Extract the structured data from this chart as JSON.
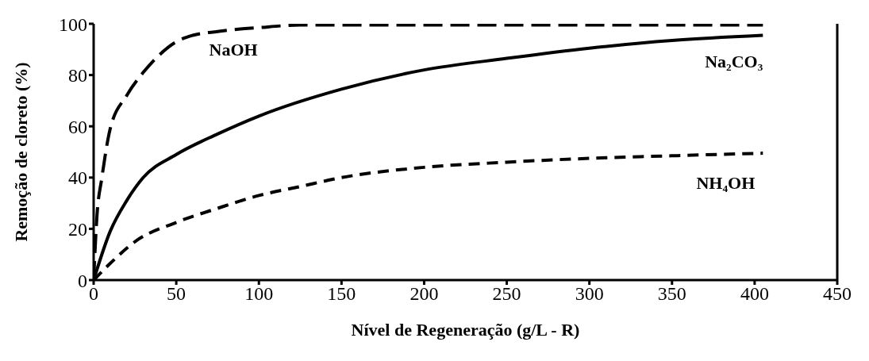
{
  "chart_data": {
    "type": "line",
    "xlabel": "Nível de Regeneração (g/L - R)",
    "ylabel": "Remoção de cloreto (%)",
    "xlim": [
      0,
      450
    ],
    "xticks": [
      0,
      50,
      100,
      150,
      200,
      250,
      300,
      350,
      400,
      450
    ],
    "ylim": [
      0,
      100
    ],
    "yticks": [
      0,
      20,
      40,
      60,
      80,
      100
    ],
    "legend": false,
    "marker": "none",
    "series": [
      {
        "name": "NaOH",
        "color": "#000000",
        "line_style": "dashed",
        "x": [
          0,
          2,
          5,
          10,
          20,
          30,
          40,
          50,
          60,
          75,
          100,
          125,
          150,
          200,
          250,
          300,
          350,
          405
        ],
        "values": [
          0,
          25,
          40,
          59,
          72,
          81,
          88,
          93,
          95.5,
          97,
          98.5,
          99.5,
          99.5,
          99.5,
          99.5,
          99.5,
          99.5,
          99.5
        ]
      },
      {
        "name": "Na₂CO₃",
        "color": "#000000",
        "line_style": "solid",
        "x": [
          0,
          10,
          20,
          30,
          50,
          75,
          100,
          150,
          200,
          250,
          300,
          350,
          405
        ],
        "values": [
          0,
          19,
          31,
          40,
          49,
          57,
          64,
          74.5,
          82,
          86.5,
          90.5,
          93.5,
          95.5
        ]
      },
      {
        "name": "NH₄OH",
        "color": "#000000",
        "line_style": "dashed",
        "x": [
          0,
          10,
          25,
          50,
          75,
          100,
          125,
          150,
          200,
          250,
          300,
          350,
          405
        ],
        "values": [
          0,
          6.5,
          15,
          22.5,
          28,
          33,
          36.5,
          40,
          44,
          46,
          47.5,
          48.5,
          49.5
        ]
      }
    ]
  }
}
